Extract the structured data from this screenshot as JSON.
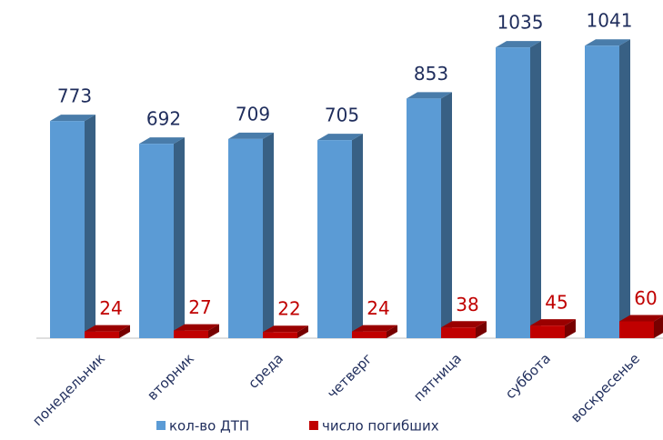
{
  "chart_data": {
    "type": "bar3d",
    "categories": [
      "понедельник",
      "вторник",
      "среда",
      "четверг",
      "пятница",
      "суббота",
      "воскресенье"
    ],
    "series": [
      {
        "name": "кол-во ДТП",
        "color": "#5b9bd5",
        "values": [
          773,
          692,
          709,
          705,
          853,
          1035,
          1041
        ]
      },
      {
        "name": "число погибших",
        "color": "#c00000",
        "values": [
          24,
          27,
          22,
          24,
          38,
          45,
          60
        ]
      }
    ],
    "ylim": [
      0,
      1100
    ],
    "legend": "bottom"
  }
}
